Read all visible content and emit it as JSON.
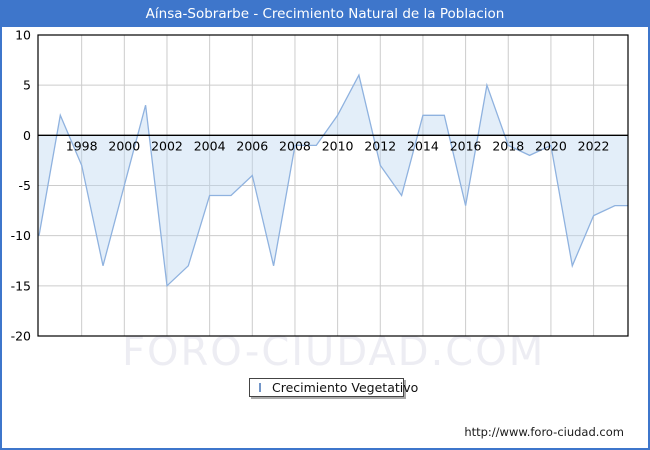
{
  "title": "Aínsa-Sobrarbe - Crecimiento Natural de la Poblacion",
  "watermark": "FORO-CIUDAD.COM",
  "legend": {
    "label": "Crecimiento Vegetativo"
  },
  "footer": {
    "url": "http://www.foro-ciudad.com"
  },
  "colors": {
    "frame_blue": "#3e76cb",
    "title_text": "#ffffff",
    "plot_border": "#000000",
    "zero_axis": "#000000",
    "gridline": "#cccccc",
    "series_line": "#8fb2df",
    "area_fill": "#bdd7f0",
    "tick_text": "#000000",
    "watermark_text": "#ededf3",
    "legend_swatch_fill": "#bcd5f0",
    "legend_swatch_border": "#7396c8"
  },
  "chart_data": {
    "type": "area",
    "title": "Aínsa-Sobrarbe - Crecimiento Natural de la Poblacion",
    "series_name": "Crecimiento Vegetativo",
    "x": [
      1996,
      1997,
      1998,
      1999,
      2000,
      2001,
      2002,
      2003,
      2004,
      2005,
      2006,
      2007,
      2008,
      2009,
      2010,
      2011,
      2012,
      2013,
      2014,
      2015,
      2016,
      2017,
      2018,
      2019,
      2020,
      2021,
      2022,
      2023
    ],
    "values": [
      -10,
      2,
      -3,
      -13,
      -5,
      3,
      -15,
      -13,
      -6,
      -6,
      -4,
      -13,
      -1,
      -1,
      2,
      6,
      -3,
      -6,
      2,
      2,
      -7,
      5,
      -1,
      -2,
      -1,
      -13,
      -8,
      -7
    ],
    "baseline": 0,
    "ylim": [
      -20,
      10
    ],
    "yticks": [
      10,
      5,
      0,
      -5,
      -10,
      -15,
      -20
    ],
    "xtick_labels": [
      1998,
      2000,
      2002,
      2004,
      2006,
      2008,
      2010,
      2012,
      2014,
      2016,
      2018,
      2020,
      2022
    ],
    "grid": true,
    "legend_position": "bottom-left",
    "xlabel": "",
    "ylabel": ""
  }
}
